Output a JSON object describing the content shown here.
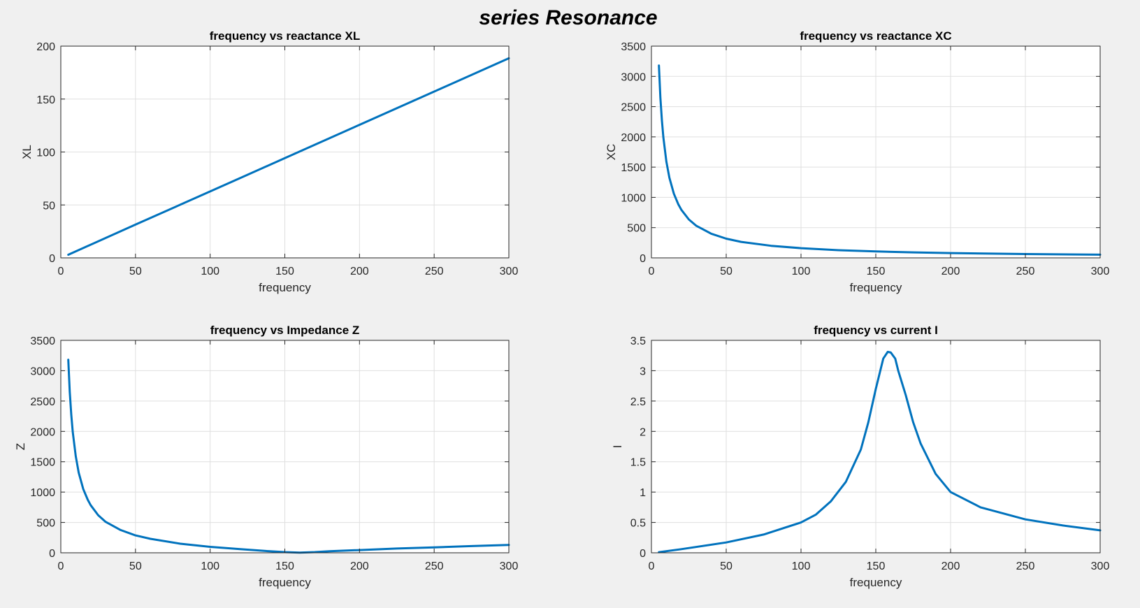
{
  "figure": {
    "title": "series Resonance",
    "background": "#f0f0f0",
    "line_color": "#0072bd"
  },
  "chart_data": [
    {
      "type": "line",
      "title": "frequency vs reactance XL",
      "xlabel": "frequency",
      "ylabel": "XL",
      "xlim": [
        0,
        300
      ],
      "ylim": [
        0,
        200
      ],
      "xticks": [
        0,
        50,
        100,
        150,
        200,
        250,
        300
      ],
      "yticks": [
        0,
        50,
        100,
        150,
        200
      ],
      "grid": true,
      "series": [
        {
          "x": [
            5,
            50,
            100,
            150,
            200,
            250,
            300
          ],
          "y": [
            3,
            31.4,
            62.8,
            94.2,
            125.7,
            157.1,
            188.5
          ]
        }
      ]
    },
    {
      "type": "line",
      "title": "frequency vs reactance XC",
      "xlabel": "frequency",
      "ylabel": "XC",
      "xlim": [
        0,
        300
      ],
      "ylim": [
        0,
        3500
      ],
      "xticks": [
        0,
        50,
        100,
        150,
        200,
        250,
        300
      ],
      "yticks": [
        0,
        500,
        1000,
        1500,
        2000,
        2500,
        3000,
        3500
      ],
      "grid": true,
      "series": [
        {
          "x": [
            5,
            6,
            7,
            8,
            10,
            12,
            15,
            18,
            20,
            25,
            30,
            40,
            50,
            60,
            80,
            100,
            125,
            150,
            175,
            200,
            250,
            300
          ],
          "y": [
            3180,
            2650,
            2270,
            1990,
            1590,
            1325,
            1060,
            885,
            795,
            635,
            530,
            400,
            318,
            265,
            200,
            160,
            127,
            106,
            91,
            80,
            64,
            53
          ]
        }
      ]
    },
    {
      "type": "line",
      "title": "frequency vs Impedance Z",
      "xlabel": "frequency",
      "ylabel": "Z",
      "xlim": [
        0,
        300
      ],
      "ylim": [
        0,
        3500
      ],
      "xticks": [
        0,
        50,
        100,
        150,
        200,
        250,
        300
      ],
      "yticks": [
        0,
        500,
        1000,
        1500,
        2000,
        2500,
        3000,
        3500
      ],
      "grid": true,
      "series": [
        {
          "x": [
            5,
            6,
            7,
            8,
            10,
            12,
            15,
            18,
            20,
            25,
            30,
            40,
            50,
            60,
            80,
            100,
            120,
            140,
            150,
            160,
            170,
            180,
            200,
            225,
            250,
            275,
            300
          ],
          "y": [
            3180,
            2650,
            2270,
            1990,
            1590,
            1320,
            1050,
            875,
            785,
            620,
            510,
            375,
            287,
            230,
            150,
            98,
            60,
            25,
            12,
            3,
            12,
            25,
            45,
            70,
            90,
            110,
            130
          ]
        }
      ]
    },
    {
      "type": "line",
      "title": "frequency vs current I",
      "xlabel": "frequency",
      "ylabel": "I",
      "xlim": [
        0,
        300
      ],
      "ylim": [
        0,
        3.5
      ],
      "xticks": [
        0,
        50,
        100,
        150,
        200,
        250,
        300
      ],
      "yticks": [
        0,
        0.5,
        1,
        1.5,
        2,
        2.5,
        3,
        3.5
      ],
      "grid": true,
      "series": [
        {
          "x": [
            5,
            20,
            50,
            75,
            100,
            110,
            120,
            130,
            140,
            145,
            150,
            155,
            158,
            160,
            163,
            165,
            170,
            175,
            180,
            190,
            200,
            220,
            250,
            275,
            300
          ],
          "y": [
            0.01,
            0.06,
            0.17,
            0.3,
            0.5,
            0.63,
            0.85,
            1.17,
            1.7,
            2.15,
            2.7,
            3.2,
            3.31,
            3.3,
            3.2,
            3.0,
            2.6,
            2.15,
            1.8,
            1.3,
            1.0,
            0.75,
            0.55,
            0.45,
            0.37
          ]
        }
      ]
    }
  ]
}
